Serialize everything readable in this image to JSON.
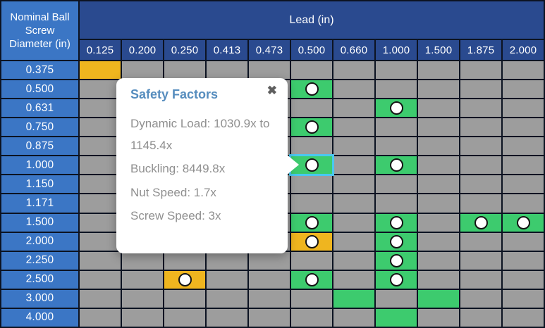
{
  "colors": {
    "row_header_blue": "#3b76c5",
    "header_navy": "#2a4a8f",
    "grid_gray": "#9d9d9d",
    "status_green": "#3dcb6e",
    "status_orange": "#efb51f",
    "selected_outline_cyan": "#49c8f0",
    "popup_title_blue": "#568dbe",
    "popup_text_gray": "#8f8f8f"
  },
  "table": {
    "corner_label": "Nominal Ball Screw Diameter (in)",
    "col_group_label": "Lead (in)",
    "columns": [
      "0.125",
      "0.200",
      "0.250",
      "0.413",
      "0.473",
      "0.500",
      "0.660",
      "1.000",
      "1.500",
      "1.875",
      "2.000"
    ],
    "selected": {
      "row": "1.000",
      "col": "0.500"
    },
    "rows": [
      {
        "label": "0.375",
        "marks": [
          {
            "col": 0,
            "status": "orange",
            "dot": false
          }
        ]
      },
      {
        "label": "0.500",
        "marks": [
          {
            "col": 5,
            "status": "green",
            "dot": true
          }
        ]
      },
      {
        "label": "0.631",
        "marks": [
          {
            "col": 7,
            "status": "green",
            "dot": true
          }
        ]
      },
      {
        "label": "0.750",
        "marks": [
          {
            "col": 5,
            "status": "green",
            "dot": true
          }
        ]
      },
      {
        "label": "0.875",
        "marks": []
      },
      {
        "label": "1.000",
        "marks": [
          {
            "col": 5,
            "status": "green",
            "dot": true,
            "selected": true
          },
          {
            "col": 7,
            "status": "green",
            "dot": true
          }
        ]
      },
      {
        "label": "1.150",
        "marks": []
      },
      {
        "label": "1.171",
        "marks": []
      },
      {
        "label": "1.500",
        "marks": [
          {
            "col": 5,
            "status": "green",
            "dot": true
          },
          {
            "col": 7,
            "status": "green",
            "dot": true
          },
          {
            "col": 9,
            "status": "green",
            "dot": true
          },
          {
            "col": 10,
            "status": "green",
            "dot": true
          }
        ]
      },
      {
        "label": "2.000",
        "marks": [
          {
            "col": 5,
            "status": "orange",
            "dot": true
          },
          {
            "col": 7,
            "status": "green",
            "dot": true
          }
        ]
      },
      {
        "label": "2.250",
        "marks": [
          {
            "col": 7,
            "status": "green",
            "dot": true
          }
        ]
      },
      {
        "label": "2.500",
        "marks": [
          {
            "col": 2,
            "status": "orange",
            "dot": true
          },
          {
            "col": 5,
            "status": "green",
            "dot": true
          },
          {
            "col": 7,
            "status": "green",
            "dot": true
          }
        ]
      },
      {
        "label": "3.000",
        "marks": [
          {
            "col": 6,
            "status": "green",
            "dot": false
          },
          {
            "col": 8,
            "status": "green",
            "dot": false
          }
        ]
      },
      {
        "label": "4.000",
        "marks": [
          {
            "col": 7,
            "status": "green",
            "dot": false
          }
        ]
      }
    ]
  },
  "popup": {
    "title": "Safety Factors",
    "close_glyph": "✖",
    "lines": [
      "Dynamic Load: 1030.9x to 1145.4x",
      "Buckling: 8449.8x",
      "Nut Speed: 1.7x",
      "Screw Speed: 3x"
    ]
  }
}
